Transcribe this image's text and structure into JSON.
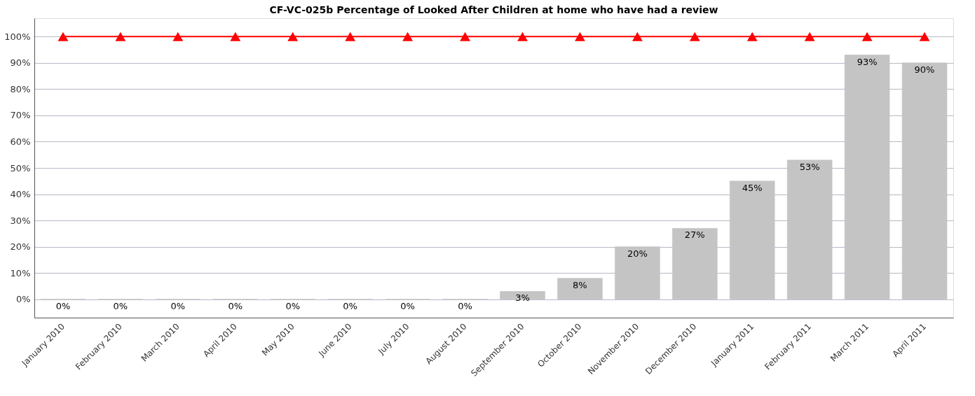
{
  "chart_data": {
    "type": "bar",
    "title": "CF-VC-025b Percentage of Looked After Children at home who have had a review",
    "categories": [
      "January 2010",
      "February 2010",
      "March 2010",
      "April 2010",
      "May 2010",
      "June 2010",
      "July 2010",
      "August 2010",
      "September 2010",
      "October 2010",
      "November 2010",
      "December 2010",
      "January 2011",
      "February 2011",
      "March 2011",
      "April 2011"
    ],
    "series": [
      {
        "color": "#c4c4c4",
        "values": [
          0,
          0,
          0,
          0,
          0,
          0,
          0,
          0,
          3,
          8,
          20,
          27,
          45,
          53,
          93,
          90
        ],
        "value_labels": [
          "0%",
          "0%",
          "0%",
          "0%",
          "0%",
          "0%",
          "0%",
          "0%",
          "3%",
          "8%",
          "20%",
          "27%",
          "45%",
          "53%",
          "93%",
          "90%"
        ]
      },
      {
        "type": "line",
        "color": "#ff0000",
        "marker": "triangle",
        "values": [
          100,
          100,
          100,
          100,
          100,
          100,
          100,
          100,
          100,
          100,
          100,
          100,
          100,
          100,
          100,
          100
        ]
      }
    ],
    "ylim": [
      -7,
      107
    ],
    "yticks": [
      {
        "value": 0,
        "label": "0%"
      },
      {
        "value": 10,
        "label": "10%"
      },
      {
        "value": 20,
        "label": "20%"
      },
      {
        "value": 30,
        "label": "30%"
      },
      {
        "value": 40,
        "label": "40%"
      },
      {
        "value": 50,
        "label": "50%"
      },
      {
        "value": 60,
        "label": "60%"
      },
      {
        "value": 70,
        "label": "70%"
      },
      {
        "value": 80,
        "label": "80%"
      },
      {
        "value": 90,
        "label": "90%"
      },
      {
        "value": 100,
        "label": "100%"
      }
    ],
    "grid": "y"
  }
}
